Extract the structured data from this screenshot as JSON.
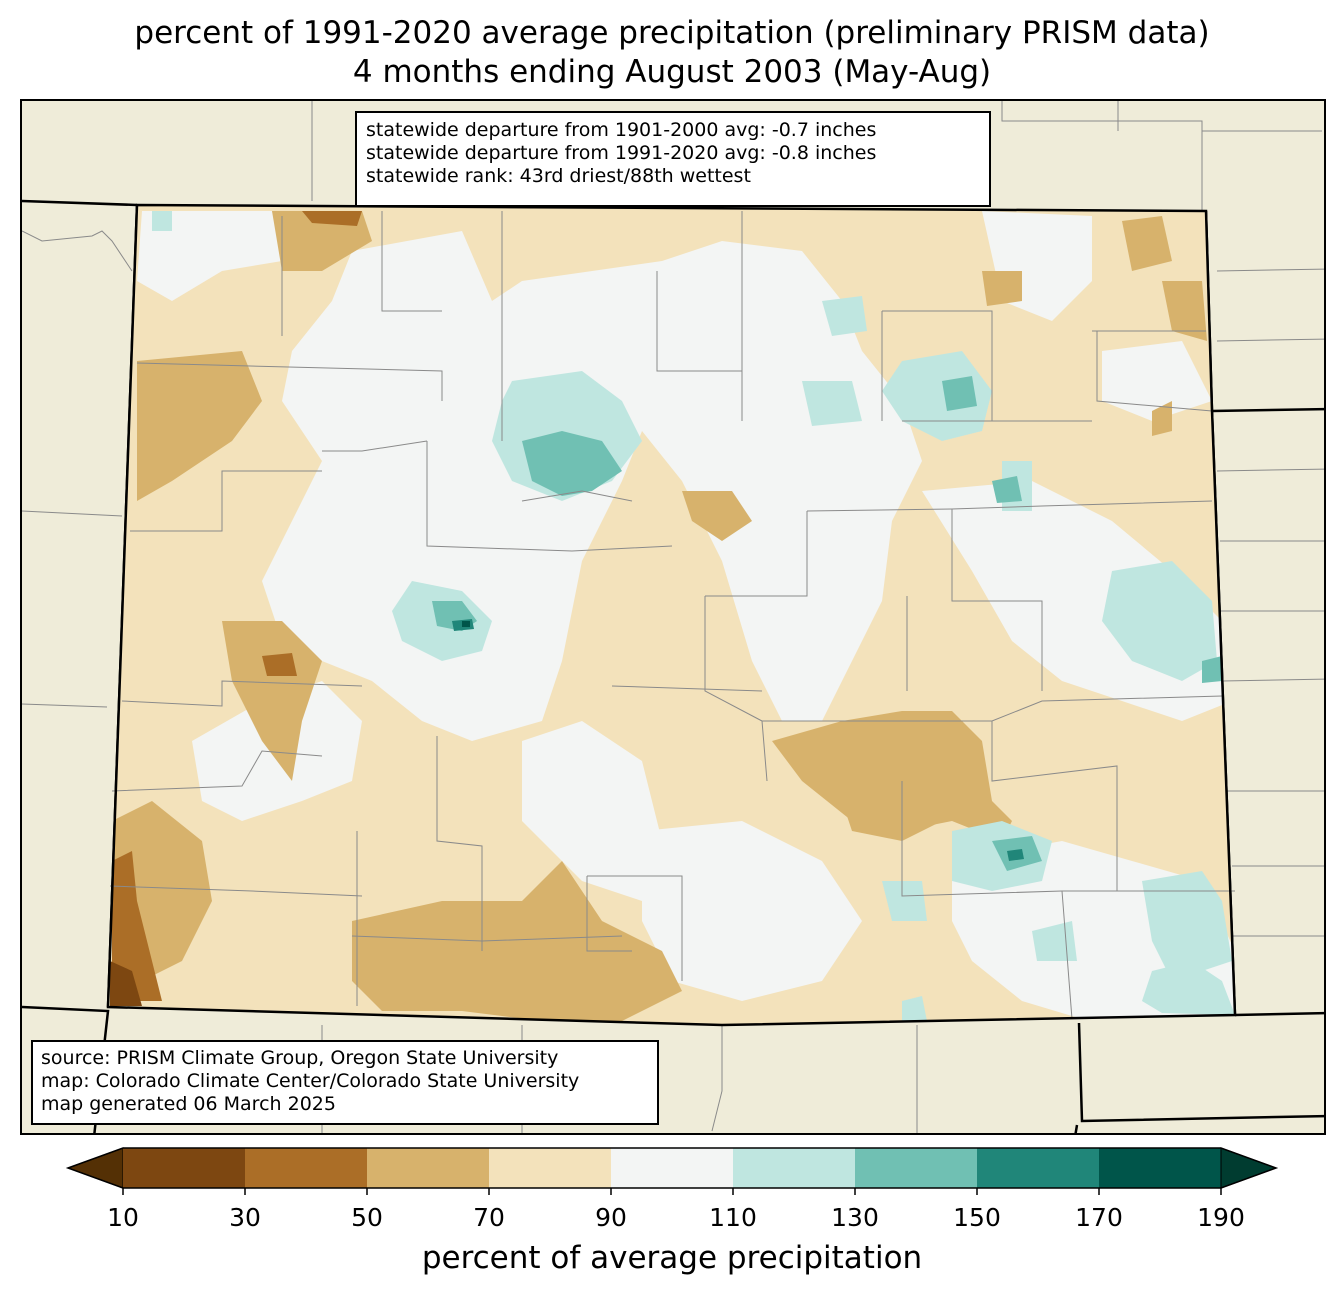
{
  "title": {
    "line1": "percent of 1991-2020 average precipitation (preliminary PRISM data)",
    "line2": "4 months ending August 2003 (May-Aug)"
  },
  "stats": {
    "line1": "statewide departure from 1901-2000 avg: -0.7 inches",
    "line2": "statewide departure from 1991-2020 avg: -0.8 inches",
    "line3": "statewide rank: 43rd driest/88th wettest"
  },
  "source": {
    "line1": "source: PRISM Climate Group, Oregon State University",
    "line2": "map: Colorado Climate Center/Colorado State University",
    "line3": "map generated 06 March 2025"
  },
  "colorbar": {
    "label": "percent of average precipitation",
    "ticks": [
      "10",
      "30",
      "50",
      "70",
      "90",
      "110",
      "130",
      "150",
      "170",
      "190"
    ],
    "under_color": "#543005",
    "over_color": "#003c30",
    "colors": [
      "#7d4711",
      "#ab6e27",
      "#d7b26c",
      "#f3e2bb",
      "#f3f5f4",
      "#bfe6e0",
      "#70c0b3",
      "#208679",
      "#00554a"
    ]
  },
  "legend_colors": {
    "outside_state": "#efecd9",
    "state_border": "#000000",
    "county_lines": "#8a8a8a"
  }
}
